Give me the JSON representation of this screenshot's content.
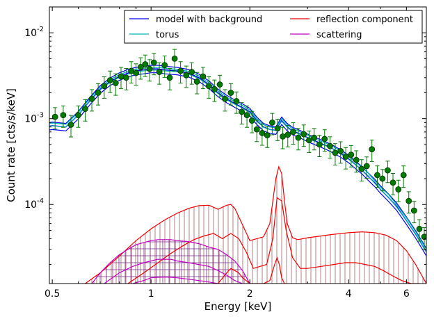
{
  "chart_data": {
    "type": "scatter",
    "title": "",
    "xlabel": "Energy [keV]",
    "ylabel": "Count rate [cts/s/keV]",
    "xscale": "log",
    "yscale": "log",
    "xlim": [
      0.49,
      6.9
    ],
    "ylim": [
      1.2e-05,
      0.02
    ],
    "x_ticks": [
      {
        "value": 0.5,
        "label": "0.5"
      },
      {
        "value": 1,
        "label": "1"
      },
      {
        "value": 2,
        "label": "2"
      },
      {
        "value": 4,
        "label": "4"
      },
      {
        "value": 6,
        "label": "6"
      }
    ],
    "y_ticks": [
      {
        "value": 0.0001,
        "base": "10",
        "exp": "-4"
      },
      {
        "value": 0.001,
        "base": "10",
        "exp": "-3"
      },
      {
        "value": 0.01,
        "base": "10",
        "exp": "-2"
      }
    ],
    "grid": false,
    "legend_position": "top-right",
    "legend": [
      {
        "label": "model with background",
        "color": "#0000ee"
      },
      {
        "label": "reflection component",
        "color": "#ee0000"
      },
      {
        "label": "torus",
        "color": "#00b5b5"
      },
      {
        "label": "scattering",
        "color": "#c000c0"
      }
    ],
    "data_points": {
      "color": "#007a00",
      "edge_color": "#003300",
      "x": [
        0.51,
        0.54,
        0.57,
        0.6,
        0.63,
        0.66,
        0.69,
        0.72,
        0.75,
        0.78,
        0.81,
        0.84,
        0.87,
        0.9,
        0.93,
        0.96,
        0.99,
        1.02,
        1.06,
        1.1,
        1.14,
        1.18,
        1.23,
        1.28,
        1.33,
        1.38,
        1.44,
        1.5,
        1.56,
        1.62,
        1.68,
        1.75,
        1.82,
        1.89,
        1.96,
        2.03,
        2.1,
        2.18,
        2.26,
        2.34,
        2.43,
        2.52,
        2.61,
        2.71,
        2.81,
        2.92,
        3.03,
        3.14,
        3.26,
        3.38,
        3.51,
        3.64,
        3.78,
        3.92,
        4.07,
        4.22,
        4.38,
        4.54,
        4.71,
        4.89,
        5.07,
        5.26,
        5.46,
        5.67,
        5.88,
        6.1,
        6.33,
        6.57,
        6.8
      ],
      "y": [
        0.00105,
        0.0011,
        0.00085,
        0.0011,
        0.0013,
        0.0017,
        0.002,
        0.0024,
        0.0028,
        0.0026,
        0.0031,
        0.003,
        0.0036,
        0.0034,
        0.004,
        0.0043,
        0.0038,
        0.0045,
        0.0035,
        0.0042,
        0.003,
        0.005,
        0.0036,
        0.0032,
        0.0035,
        0.0027,
        0.0031,
        0.0024,
        0.0022,
        0.0025,
        0.0017,
        0.002,
        0.0016,
        0.0012,
        0.0011,
        0.00095,
        0.00075,
        0.00068,
        0.00064,
        0.0009,
        0.00077,
        0.00062,
        0.00065,
        0.0007,
        0.0006,
        0.00066,
        0.00056,
        0.0006,
        0.0005,
        0.00058,
        0.00048,
        0.0004,
        0.00042,
        0.00036,
        0.00038,
        0.00033,
        0.00026,
        0.00028,
        0.00044,
        0.00022,
        0.0002,
        0.00025,
        0.00018,
        0.00015,
        0.00022,
        0.00011,
        8.5e-05,
        5.2e-05,
        4.2e-05
      ],
      "err_frac": 0.28
    },
    "series": [
      {
        "name": "model with background",
        "color": "#0000ee",
        "x": [
          0.49,
          0.5,
          0.55,
          0.6,
          0.65,
          0.7,
          0.75,
          0.8,
          0.85,
          0.9,
          0.95,
          1.0,
          1.05,
          1.1,
          1.2,
          1.3,
          1.4,
          1.5,
          1.6,
          1.7,
          1.8,
          1.9,
          2.0,
          2.1,
          2.2,
          2.3,
          2.4,
          2.5,
          2.6,
          2.7,
          2.8,
          2.9,
          3.0,
          3.2,
          3.4,
          3.6,
          3.8,
          4.0,
          4.2,
          4.4,
          4.6,
          4.8,
          5.0,
          5.3,
          5.6,
          6.0,
          6.4,
          6.9
        ],
        "y": [
          0.00082,
          0.00083,
          0.0008,
          0.0011,
          0.0016,
          0.0022,
          0.0027,
          0.0031,
          0.0034,
          0.0036,
          0.0037,
          0.0038,
          0.0038,
          0.0037,
          0.0036,
          0.0034,
          0.003,
          0.0025,
          0.002,
          0.0017,
          0.0015,
          0.00135,
          0.0012,
          0.00095,
          0.0008,
          0.00075,
          0.00073,
          0.00095,
          0.0008,
          0.00072,
          0.00068,
          0.00064,
          0.0006,
          0.00054,
          0.00049,
          0.00044,
          0.00039,
          0.00034,
          0.00029,
          0.00025,
          0.00021,
          0.00018,
          0.00015,
          0.00012,
          9.5e-05,
          6.5e-05,
          4.5e-05,
          2.8e-05
        ]
      },
      {
        "name": "torus",
        "color": "#00b5b5",
        "x": [
          0.49,
          0.5,
          0.55,
          0.6,
          0.65,
          0.7,
          0.75,
          0.8,
          0.85,
          0.9,
          0.95,
          1.0,
          1.05,
          1.1,
          1.2,
          1.3,
          1.4,
          1.5,
          1.6,
          1.7,
          1.8,
          1.9,
          2.0,
          2.1,
          2.2,
          2.3,
          2.4,
          2.5,
          2.6,
          2.7,
          2.8,
          2.9,
          3.0,
          3.2,
          3.4,
          3.6,
          3.8,
          4.0,
          4.2,
          4.4,
          4.6,
          4.8,
          5.0,
          5.3,
          5.6,
          6.0,
          6.4,
          6.9
        ],
        "y": [
          0.00088,
          0.00089,
          0.00086,
          0.00118,
          0.0017,
          0.00232,
          0.00284,
          0.00325,
          0.00355,
          0.00376,
          0.00387,
          0.00395,
          0.00396,
          0.00386,
          0.00376,
          0.00355,
          0.00314,
          0.00262,
          0.0021,
          0.00178,
          0.00158,
          0.00142,
          0.00126,
          0.001,
          0.00085,
          0.0008,
          0.00078,
          0.001,
          0.00085,
          0.00076,
          0.00072,
          0.00068,
          0.00064,
          0.00057,
          0.00052,
          0.00047,
          0.00041,
          0.00036,
          0.00031,
          0.00027,
          0.00023,
          0.00019,
          0.00016,
          0.00013,
          0.0001,
          7e-05,
          4.8e-05,
          3e-05
        ]
      },
      {
        "name": "reflection component",
        "color": "#ee0000",
        "curves": [
          {
            "x": [
              0.63,
              0.7,
              0.8,
              0.9,
              1.0,
              1.1,
              1.2,
              1.3,
              1.4,
              1.5,
              1.6,
              1.7,
              1.75,
              1.8,
              1.9,
              2.0,
              2.1,
              2.2,
              2.3,
              2.4,
              2.45,
              2.5,
              2.55,
              2.6,
              2.7,
              2.8,
              3.0,
              3.3,
              3.6,
              4.0,
              4.4,
              4.8,
              5.2,
              5.6,
              6.0,
              6.4,
              6.9
            ],
            "y": [
              1.2e-05,
              1.6e-05,
              2.5e-05,
              3.8e-05,
              5.2e-05,
              6.6e-05,
              7.9e-05,
              9e-05,
              9.7e-05,
              9.8e-05,
              8.8e-05,
              9.8e-05,
              0.0001,
              9e-05,
              5.8e-05,
              3.8e-05,
              4e-05,
              4.2e-05,
              6e-05,
              0.0002,
              0.000275,
              0.00023,
              0.00011,
              6e-05,
              4.1e-05,
              3.9e-05,
              4.1e-05,
              4.3e-05,
              4.5e-05,
              4.7e-05,
              4.8e-05,
              4.7e-05,
              4.4e-05,
              3.8e-05,
              2.9e-05,
              2e-05,
              1.2e-05
            ]
          },
          {
            "x": [
              0.85,
              0.95,
              1.05,
              1.15,
              1.25,
              1.35,
              1.45,
              1.55,
              1.65,
              1.75,
              1.85,
              1.95,
              2.05,
              2.15,
              2.25,
              2.35,
              2.42,
              2.5,
              2.58,
              2.7,
              2.85,
              3.0,
              3.3,
              3.6,
              3.9,
              4.2,
              4.5,
              4.8,
              5.1,
              5.4,
              5.8,
              6.2,
              6.6
            ],
            "y": [
              1.2e-05,
              1.6e-05,
              2.1e-05,
              2.7e-05,
              3.3e-05,
              3.9e-05,
              4.3e-05,
              4.6e-05,
              4e-05,
              4.6e-05,
              4e-05,
              2.8e-05,
              1.8e-05,
              1.9e-05,
              2e-05,
              4e-05,
              0.00012,
              0.00011,
              5e-05,
              2.4e-05,
              1.8e-05,
              1.8e-05,
              1.9e-05,
              2e-05,
              2.1e-05,
              2.1e-05,
              2e-05,
              1.9e-05,
              1.7e-05,
              1.5e-05,
              1.3e-05,
              1.2e-05,
              1.2e-05
            ]
          },
          {
            "x": [
              1.6,
              1.7,
              1.75,
              1.8,
              1.85,
              1.9,
              1.95,
              2.0,
              2.1,
              2.2,
              2.3,
              2.38,
              2.42,
              2.46,
              2.5,
              2.55
            ],
            "y": [
              1.2e-05,
              1.6e-05,
              1.8e-05,
              1.7e-05,
              1.6e-05,
              1.4e-05,
              1.3e-05,
              1.2e-05,
              1.2e-05,
              1.2e-05,
              1.3e-05,
              2e-05,
              2.4e-05,
              2e-05,
              1.4e-05,
              1.2e-05
            ]
          }
        ]
      },
      {
        "name": "scattering",
        "color": "#c000c0",
        "curves": [
          {
            "x": [
              0.66,
              0.7,
              0.75,
              0.8,
              0.85,
              0.9,
              0.95,
              1.0,
              1.05,
              1.1,
              1.15,
              1.2,
              1.3,
              1.4,
              1.5,
              1.6,
              1.7,
              1.8,
              1.9,
              2.0
            ],
            "y": [
              1.2e-05,
              1.6e-05,
              2.1e-05,
              2.6e-05,
              3e-05,
              3.4e-05,
              3.6e-05,
              3.8e-05,
              3.9e-05,
              3.9e-05,
              3.9e-05,
              3.8e-05,
              3.7e-05,
              3.5e-05,
              3.2e-05,
              3e-05,
              2.6e-05,
              2.2e-05,
              1.7e-05,
              1.2e-05
            ]
          },
          {
            "x": [
              0.72,
              0.8,
              0.88,
              0.95,
              1.0,
              1.05,
              1.1,
              1.15,
              1.2,
              1.3,
              1.4,
              1.5,
              1.6,
              1.7,
              1.8,
              1.9
            ],
            "y": [
              1.2e-05,
              1.6e-05,
              1.9e-05,
              2.1e-05,
              2.2e-05,
              2.3e-05,
              2.3e-05,
              2.3e-05,
              2.2e-05,
              2.1e-05,
              2e-05,
              1.9e-05,
              1.7e-05,
              1.5e-05,
              1.3e-05,
              1.2e-05
            ]
          },
          {
            "x": [
              0.88,
              0.95,
              1.0,
              1.05,
              1.1,
              1.15,
              1.2,
              1.3,
              1.4,
              1.5,
              1.6,
              1.7
            ],
            "y": [
              1.2e-05,
              1.3e-05,
              1.4e-05,
              1.42e-05,
              1.43e-05,
              1.42e-05,
              1.4e-05,
              1.35e-05,
              1.3e-05,
              1.25e-05,
              1.2e-05,
              1.2e-05
            ]
          }
        ]
      }
    ]
  }
}
